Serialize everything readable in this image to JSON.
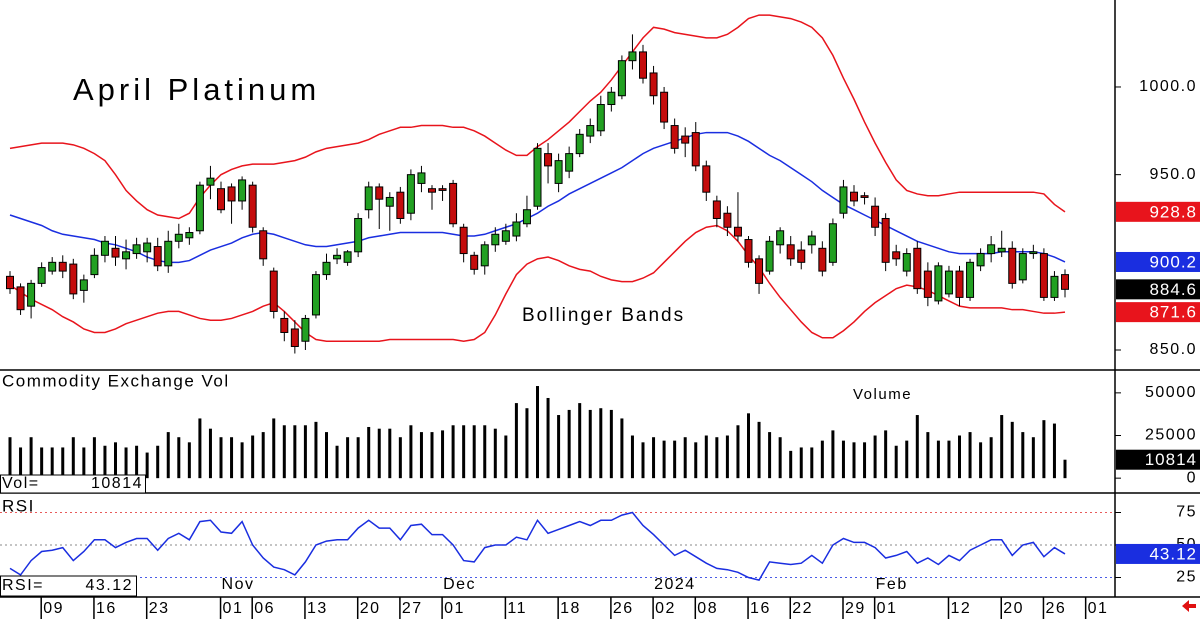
{
  "chart_data": [
    {
      "type": "candlestick",
      "title": "April Platinum",
      "annotation": "Bollinger Bands",
      "categories": [
        null,
        null,
        null,
        null,
        "09",
        null,
        null,
        null,
        null,
        "16",
        null,
        null,
        null,
        null,
        "23",
        null,
        null,
        null,
        null,
        null,
        null,
        "01",
        null,
        null,
        "06",
        null,
        null,
        null,
        null,
        "13",
        null,
        null,
        null,
        null,
        "20",
        null,
        null,
        null,
        "27",
        null,
        null,
        null,
        "01",
        null,
        null,
        null,
        null,
        null,
        "11",
        null,
        null,
        null,
        null,
        "18",
        null,
        null,
        null,
        null,
        "26",
        null,
        null,
        null,
        "02",
        null,
        null,
        null,
        "08",
        null,
        null,
        null,
        null,
        "16",
        null,
        null,
        null,
        "22",
        null,
        null,
        null,
        null,
        "29",
        null,
        null,
        "01",
        null,
        null,
        null,
        null,
        null,
        null,
        "12",
        null,
        null,
        null,
        null,
        "20",
        null,
        null,
        null,
        "26",
        null,
        null,
        null,
        "01"
      ],
      "months": [
        null,
        null,
        null,
        null,
        null,
        null,
        null,
        null,
        null,
        null,
        null,
        null,
        null,
        null,
        null,
        null,
        null,
        null,
        null,
        null,
        null,
        "Nov",
        null,
        null,
        null,
        null,
        null,
        null,
        null,
        null,
        null,
        null,
        null,
        null,
        null,
        null,
        null,
        null,
        null,
        null,
        null,
        null,
        "Dec",
        null,
        null,
        null,
        null,
        null,
        null,
        null,
        null,
        null,
        null,
        null,
        null,
        null,
        null,
        null,
        null,
        null,
        null,
        null,
        "2024",
        null,
        null,
        null,
        null,
        null,
        null,
        null,
        null,
        null,
        null,
        null,
        null,
        null,
        null,
        null,
        null,
        null,
        null,
        null,
        null,
        "Feb",
        null,
        null,
        null,
        null,
        null,
        null,
        null,
        null,
        null,
        null,
        null,
        null,
        null,
        null,
        null,
        null,
        null,
        null,
        null,
        null
      ],
      "open": [
        892,
        886,
        875,
        888,
        895,
        900,
        899,
        884,
        893,
        904,
        908,
        902,
        905,
        906,
        909,
        898,
        912,
        914,
        918,
        944,
        942,
        943,
        935,
        944,
        918,
        895,
        868,
        862,
        855,
        870,
        893,
        902,
        900,
        906,
        930,
        943,
        932,
        940,
        928,
        945,
        942,
        942,
        945,
        920,
        904,
        898,
        910,
        912,
        915,
        922,
        932,
        962,
        945,
        952,
        962,
        972,
        975,
        990,
        995,
        1015,
        1020,
        1008,
        997,
        978,
        972,
        974,
        955,
        935,
        928,
        920,
        913,
        902,
        895,
        910,
        910,
        907,
        910,
        908,
        900,
        928,
        940,
        938,
        932,
        925,
        906,
        895,
        908,
        895,
        878,
        882,
        895,
        880,
        898,
        905,
        906,
        908,
        890,
        905,
        905,
        880,
        893,
        null,
        null,
        null
      ],
      "high": [
        895,
        888,
        890,
        900,
        903,
        904,
        902,
        893,
        908,
        915,
        915,
        913,
        914,
        914,
        914,
        918,
        922,
        920,
        946,
        955,
        946,
        945,
        949,
        946,
        920,
        897,
        872,
        867,
        870,
        895,
        905,
        908,
        907,
        928,
        946,
        945,
        940,
        943,
        953,
        955,
        944,
        944,
        947,
        922,
        906,
        912,
        920,
        922,
        928,
        938,
        968,
        968,
        962,
        966,
        976,
        982,
        995,
        1000,
        1018,
        1030,
        1024,
        1012,
        1000,
        982,
        977,
        980,
        958,
        938,
        932,
        940,
        915,
        904,
        915,
        920,
        915,
        912,
        918,
        912,
        925,
        947,
        944,
        940,
        937,
        928,
        910,
        908,
        912,
        900,
        900,
        898,
        898,
        902,
        908,
        915,
        918,
        912,
        908,
        910,
        908,
        895,
        896,
        null,
        null,
        null
      ],
      "low": [
        882,
        870,
        868,
        886,
        893,
        891,
        879,
        877,
        891,
        900,
        898,
        896,
        902,
        900,
        895,
        894,
        908,
        910,
        916,
        936,
        928,
        922,
        930,
        917,
        898,
        868,
        855,
        848,
        850,
        868,
        890,
        899,
        898,
        903,
        925,
        919,
        918,
        922,
        924,
        940,
        930,
        935,
        920,
        900,
        893,
        893,
        906,
        910,
        912,
        920,
        930,
        945,
        940,
        948,
        960,
        968,
        972,
        986,
        993,
        1010,
        1002,
        990,
        976,
        962,
        960,
        952,
        935,
        920,
        915,
        912,
        897,
        882,
        893,
        905,
        898,
        896,
        905,
        892,
        898,
        925,
        932,
        933,
        915,
        895,
        898,
        892,
        882,
        875,
        876,
        880,
        875,
        878,
        895,
        900,
        903,
        885,
        888,
        902,
        878,
        878,
        880,
        null,
        null,
        null
      ],
      "close": [
        885,
        873,
        888,
        897,
        900,
        895,
        882,
        890,
        904,
        912,
        903,
        906,
        910,
        911,
        898,
        912,
        916,
        917,
        944,
        948,
        930,
        935,
        947,
        920,
        902,
        872,
        860,
        852,
        868,
        893,
        900,
        904,
        906,
        925,
        943,
        936,
        937,
        925,
        950,
        951,
        940,
        941,
        922,
        905,
        896,
        910,
        916,
        918,
        923,
        930,
        965,
        955,
        958,
        962,
        973,
        978,
        990,
        997,
        1015,
        1020,
        1005,
        995,
        980,
        965,
        968,
        955,
        940,
        925,
        920,
        915,
        900,
        888,
        912,
        918,
        902,
        900,
        915,
        895,
        922,
        943,
        935,
        937,
        920,
        900,
        902,
        905,
        885,
        880,
        898,
        895,
        880,
        900,
        905,
        910,
        908,
        888,
        905,
        906,
        880,
        892,
        884.6,
        null,
        null,
        null
      ],
      "up_color": "#22a022",
      "down_color": "#c40c0c",
      "bands": [
        {
          "color": "#e8141c",
          "values": [
            965,
            966,
            967,
            968,
            968,
            968,
            967,
            965,
            962,
            958,
            950,
            941,
            935,
            930,
            927,
            926,
            925,
            928,
            937,
            944,
            950,
            953,
            955,
            956,
            956,
            956,
            957,
            958,
            960,
            963,
            965,
            966,
            967,
            968,
            970,
            973,
            975,
            977,
            977,
            978,
            978,
            978,
            977,
            977,
            975,
            972,
            968,
            964,
            961,
            961,
            966,
            970,
            975,
            980,
            986,
            992,
            997,
            1004,
            1012,
            1020,
            1028,
            1034,
            1033,
            1031,
            1030,
            1029,
            1028,
            1028,
            1030,
            1034,
            1039,
            1041,
            1041,
            1040,
            1039,
            1037,
            1034,
            1028,
            1018,
            1005,
            993,
            980,
            968,
            957,
            947,
            941,
            939,
            938,
            938,
            939,
            940,
            940,
            940,
            940,
            940,
            940,
            940,
            940,
            939,
            933,
            928.8,
            null,
            null,
            null
          ]
        },
        {
          "color": "#1a2ee0",
          "values": [
            927,
            925,
            923,
            921,
            918,
            916,
            915,
            914,
            913,
            911,
            910,
            908,
            906,
            903,
            901,
            900,
            900,
            901,
            904,
            907,
            909,
            911,
            914,
            916,
            917,
            916,
            914,
            912,
            910,
            909,
            909,
            910,
            911,
            912,
            914,
            915,
            916,
            917,
            917,
            917,
            917,
            917,
            916,
            915,
            915,
            916,
            918,
            920,
            922,
            925,
            928,
            932,
            935,
            939,
            942,
            945,
            948,
            951,
            954,
            958,
            962,
            965,
            967,
            969,
            971,
            973,
            974,
            974,
            974,
            972,
            969,
            965,
            961,
            958,
            954,
            950,
            946,
            941,
            937,
            933,
            930,
            927,
            924,
            921,
            918,
            915,
            912,
            910,
            908,
            906,
            905,
            905,
            905,
            905,
            906,
            906,
            906,
            906,
            905,
            903,
            900.2,
            null,
            null,
            null
          ]
        },
        {
          "color": "#e8141c",
          "values": [
            887,
            883,
            879,
            876,
            873,
            869,
            866,
            862,
            860,
            860,
            862,
            865,
            867,
            869,
            871,
            872,
            872,
            870,
            868,
            867,
            867,
            868,
            870,
            872,
            875,
            877,
            872,
            866,
            860,
            856,
            855,
            855,
            855,
            855,
            855,
            855,
            856,
            856,
            856,
            856,
            856,
            856,
            856,
            855,
            856,
            860,
            870,
            882,
            893,
            899,
            902,
            903,
            901,
            898,
            896,
            895,
            892,
            890,
            889,
            889,
            891,
            894,
            900,
            906,
            912,
            917,
            920,
            921,
            918,
            912,
            904,
            897,
            888,
            880,
            873,
            866,
            860,
            857,
            857,
            861,
            866,
            872,
            877,
            881,
            885,
            887,
            886,
            884,
            881,
            878,
            875,
            874,
            874,
            874,
            874,
            873,
            873,
            872,
            871,
            871,
            871.6,
            null,
            null,
            null
          ]
        }
      ],
      "ylim": [
        838.6,
        1049.6
      ],
      "yticks": [
        {
          "value": 850,
          "label": "850.0"
        },
        {
          "value": 950,
          "label": "950.0"
        },
        {
          "value": 1000,
          "label": "1000.0"
        }
      ]
    },
    {
      "type": "bar",
      "title": "Commodity Exchange Vol",
      "annotation": "Volume",
      "readout_label": "Vol=",
      "values": [
        24000,
        18000,
        24000,
        18000,
        18000,
        18000,
        24000,
        18000,
        24000,
        19000,
        21000,
        18000,
        19000,
        15000,
        19000,
        27000,
        24000,
        21000,
        35000,
        29000,
        24000,
        24000,
        21000,
        25000,
        27000,
        35000,
        31000,
        31000,
        31000,
        33000,
        27000,
        19000,
        24000,
        24000,
        30000,
        29000,
        29000,
        24000,
        31000,
        27000,
        27000,
        28000,
        31000,
        31000,
        31000,
        31000,
        29000,
        25000,
        44000,
        41000,
        54000,
        47000,
        37000,
        40000,
        44000,
        40000,
        41000,
        40000,
        35000,
        25000,
        21000,
        24000,
        22000,
        22000,
        24000,
        21000,
        25000,
        24000,
        25000,
        31000,
        38000,
        33000,
        27000,
        24000,
        16000,
        18000,
        18000,
        22000,
        28000,
        22000,
        21000,
        21000,
        25000,
        28000,
        19000,
        22000,
        37000,
        27000,
        22000,
        22000,
        25000,
        27000,
        21000,
        24000,
        37000,
        33000,
        27000,
        24000,
        34000,
        32000,
        10814,
        null,
        null,
        null
      ],
      "color": "#000000",
      "ylim": [
        -8700,
        63400
      ],
      "yticks": [
        0,
        25000,
        50000
      ]
    },
    {
      "type": "line",
      "title": "RSI",
      "readout_label": "RSI=",
      "values": [
        32,
        27,
        38,
        45,
        46,
        48,
        38,
        45,
        54,
        54,
        48,
        52,
        55,
        55,
        46,
        55,
        59,
        54,
        68,
        69,
        60,
        59,
        68,
        50,
        40,
        33,
        31,
        27,
        37,
        50,
        53,
        54,
        54,
        63,
        69,
        63,
        63,
        54,
        65,
        66,
        58,
        58,
        50,
        38,
        37,
        48,
        50,
        50,
        56,
        54,
        69,
        59,
        62,
        65,
        68,
        65,
        69,
        69,
        73,
        75,
        65,
        58,
        50,
        42,
        46,
        41,
        36,
        32,
        31,
        29,
        25,
        23,
        37,
        36,
        35,
        36,
        42,
        36,
        50,
        55,
        52,
        52,
        48,
        40,
        42,
        45,
        36,
        40,
        35,
        42,
        38,
        46,
        50,
        54,
        54,
        42,
        50,
        52,
        41,
        48,
        43.12,
        null,
        null,
        null
      ],
      "color": "#1a2ee0",
      "ylim": [
        10,
        90
      ],
      "yticks": [
        25,
        50,
        75
      ],
      "grid": true,
      "grid_colors": [
        "#4a5ae8",
        "#888888",
        "#e85a5a"
      ]
    }
  ]
}
